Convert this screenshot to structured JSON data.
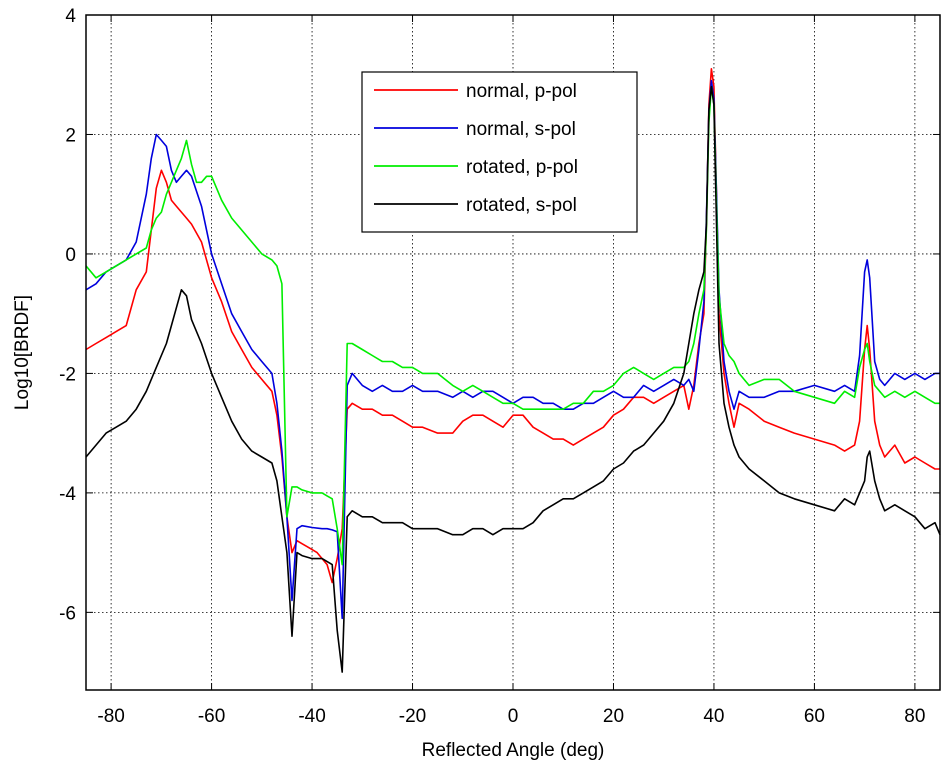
{
  "chart_data": {
    "type": "line",
    "title": "",
    "xlabel": "Reflected Angle (deg)",
    "ylabel": "Log10[BRDF]",
    "xlim": [
      -85,
      85
    ],
    "ylim": [
      -7.3,
      4
    ],
    "xticks": [
      -80,
      -60,
      -40,
      -20,
      0,
      20,
      40,
      60,
      80
    ],
    "yticks": [
      -6,
      -4,
      -2,
      0,
      2,
      4
    ],
    "grid": true,
    "legend_position": "top-center",
    "series": [
      {
        "name": "normal, p-pol",
        "color": "#ff0000",
        "x": [
          -85,
          -83,
          -81,
          -79,
          -77,
          -75,
          -73,
          -72,
          -71,
          -70,
          -69,
          -68,
          -67,
          -66,
          -65,
          -64,
          -62,
          -60,
          -58,
          -56,
          -54,
          -52,
          -50,
          -48,
          -47,
          -46,
          -45,
          -44,
          -43,
          -42,
          -41,
          -40,
          -39,
          -38,
          -37,
          -36,
          -35,
          -34,
          -33,
          -32,
          -30,
          -28,
          -26,
          -24,
          -22,
          -20,
          -18,
          -15,
          -12,
          -10,
          -8,
          -6,
          -4,
          -2,
          0,
          2,
          4,
          6,
          8,
          10,
          12,
          14,
          16,
          18,
          20,
          22,
          24,
          26,
          28,
          30,
          32,
          34,
          35,
          36,
          37,
          38,
          38.5,
          39,
          39.5,
          40,
          40.5,
          41,
          42,
          43,
          44,
          45,
          47,
          50,
          53,
          56,
          60,
          64,
          66,
          68,
          69,
          70,
          70.5,
          71,
          72,
          73,
          74,
          76,
          78,
          80,
          82,
          84,
          85
        ],
        "values": [
          -1.6,
          -1.5,
          -1.4,
          -1.3,
          -1.2,
          -0.6,
          -0.3,
          0.4,
          1.1,
          1.4,
          1.2,
          0.9,
          0.8,
          0.7,
          0.6,
          0.5,
          0.2,
          -0.4,
          -0.8,
          -1.3,
          -1.6,
          -1.9,
          -2.1,
          -2.3,
          -2.7,
          -3.4,
          -4.4,
          -5.0,
          -4.8,
          -4.85,
          -4.9,
          -4.95,
          -5.0,
          -5.1,
          -5.2,
          -5.5,
          -5.1,
          -4.6,
          -2.6,
          -2.5,
          -2.6,
          -2.6,
          -2.7,
          -2.7,
          -2.8,
          -2.9,
          -2.9,
          -3.0,
          -3.0,
          -2.8,
          -2.7,
          -2.7,
          -2.8,
          -2.9,
          -2.7,
          -2.7,
          -2.9,
          -3.0,
          -3.1,
          -3.1,
          -3.2,
          -3.1,
          -3.0,
          -2.9,
          -2.7,
          -2.6,
          -2.4,
          -2.4,
          -2.5,
          -2.4,
          -2.3,
          -2.2,
          -2.6,
          -2.2,
          -1.5,
          -1.0,
          0.5,
          2.5,
          3.1,
          2.8,
          1.0,
          -1.0,
          -2.0,
          -2.5,
          -2.9,
          -2.5,
          -2.6,
          -2.8,
          -2.9,
          -3.0,
          -3.1,
          -3.2,
          -3.3,
          -3.2,
          -2.8,
          -1.6,
          -1.2,
          -1.6,
          -2.8,
          -3.2,
          -3.4,
          -3.2,
          -3.5,
          -3.4,
          -3.5,
          -3.6,
          -3.6
        ]
      },
      {
        "name": "normal, s-pol",
        "color": "#0000dd",
        "x": [
          -85,
          -83,
          -81,
          -79,
          -77,
          -75,
          -73,
          -72,
          -71,
          -70,
          -69,
          -68,
          -67,
          -66,
          -65,
          -64,
          -62,
          -60,
          -58,
          -56,
          -54,
          -52,
          -50,
          -48,
          -47,
          -46,
          -45,
          -44,
          -43,
          -42,
          -40,
          -38,
          -37,
          -36,
          -35,
          -34,
          -33,
          -32,
          -30,
          -28,
          -26,
          -24,
          -22,
          -20,
          -18,
          -15,
          -12,
          -10,
          -8,
          -6,
          -4,
          -2,
          0,
          2,
          4,
          6,
          8,
          10,
          12,
          14,
          16,
          18,
          20,
          22,
          24,
          26,
          28,
          30,
          32,
          34,
          35,
          36,
          37,
          38,
          38.5,
          39,
          39.5,
          40,
          40.5,
          41,
          42,
          43,
          44,
          45,
          47,
          50,
          53,
          56,
          60,
          64,
          66,
          68,
          69,
          70,
          70.5,
          71,
          72,
          73,
          74,
          76,
          78,
          80,
          82,
          84,
          85
        ],
        "values": [
          -0.6,
          -0.5,
          -0.3,
          -0.2,
          -0.1,
          0.2,
          1.0,
          1.6,
          2.0,
          1.9,
          1.8,
          1.4,
          1.2,
          1.3,
          1.4,
          1.3,
          0.8,
          0.0,
          -0.5,
          -1.0,
          -1.3,
          -1.6,
          -1.8,
          -2.0,
          -2.5,
          -3.3,
          -4.4,
          -5.8,
          -4.6,
          -4.55,
          -4.58,
          -4.6,
          -4.6,
          -4.62,
          -4.65,
          -6.1,
          -2.2,
          -2.0,
          -2.2,
          -2.3,
          -2.2,
          -2.3,
          -2.3,
          -2.2,
          -2.3,
          -2.3,
          -2.4,
          -2.3,
          -2.4,
          -2.3,
          -2.3,
          -2.4,
          -2.5,
          -2.4,
          -2.4,
          -2.5,
          -2.5,
          -2.6,
          -2.6,
          -2.5,
          -2.5,
          -2.4,
          -2.3,
          -2.4,
          -2.4,
          -2.2,
          -2.3,
          -2.2,
          -2.1,
          -2.2,
          -2.1,
          -2.3,
          -1.6,
          -0.8,
          0.6,
          2.4,
          2.9,
          2.6,
          1.0,
          -0.6,
          -1.8,
          -2.3,
          -2.6,
          -2.3,
          -2.4,
          -2.4,
          -2.3,
          -2.3,
          -2.2,
          -2.3,
          -2.2,
          -2.3,
          -1.7,
          -0.3,
          -0.1,
          -0.4,
          -1.8,
          -2.1,
          -2.2,
          -2.0,
          -2.1,
          -2.0,
          -2.1,
          -2.0,
          -2.0
        ]
      },
      {
        "name": "rotated, p-pol",
        "color": "#00ee00",
        "x": [
          -85,
          -83,
          -81,
          -79,
          -77,
          -75,
          -73,
          -72,
          -71,
          -70,
          -69,
          -68,
          -67,
          -66,
          -65,
          -64,
          -63,
          -62,
          -61,
          -60,
          -58,
          -56,
          -54,
          -52,
          -50,
          -48,
          -47,
          -46,
          -45,
          -44,
          -43,
          -42,
          -40,
          -38,
          -37,
          -36,
          -35,
          -34,
          -33,
          -32,
          -30,
          -28,
          -26,
          -24,
          -22,
          -20,
          -18,
          -15,
          -12,
          -10,
          -8,
          -6,
          -4,
          -2,
          0,
          2,
          4,
          6,
          8,
          10,
          12,
          14,
          16,
          18,
          20,
          22,
          24,
          26,
          28,
          30,
          32,
          34,
          35,
          36,
          37,
          38,
          38.5,
          39,
          39.5,
          40,
          40.5,
          41,
          42,
          43,
          44,
          45,
          47,
          50,
          53,
          56,
          60,
          64,
          66,
          68,
          69,
          70,
          70.5,
          71,
          72,
          73,
          74,
          76,
          78,
          80,
          82,
          84,
          85
        ],
        "values": [
          -0.2,
          -0.4,
          -0.3,
          -0.2,
          -0.1,
          0.0,
          0.1,
          0.4,
          0.6,
          0.7,
          1.0,
          1.2,
          1.4,
          1.6,
          1.9,
          1.5,
          1.2,
          1.2,
          1.3,
          1.3,
          0.9,
          0.6,
          0.4,
          0.2,
          0.0,
          -0.1,
          -0.2,
          -0.5,
          -4.4,
          -3.9,
          -3.9,
          -3.95,
          -4.0,
          -4.0,
          -4.05,
          -4.1,
          -4.6,
          -5.2,
          -1.5,
          -1.5,
          -1.6,
          -1.7,
          -1.8,
          -1.8,
          -1.9,
          -1.9,
          -2.0,
          -2.0,
          -2.2,
          -2.3,
          -2.2,
          -2.3,
          -2.4,
          -2.5,
          -2.5,
          -2.6,
          -2.6,
          -2.6,
          -2.6,
          -2.6,
          -2.5,
          -2.5,
          -2.3,
          -2.3,
          -2.2,
          -2.0,
          -1.9,
          -2.0,
          -2.1,
          -2.0,
          -1.9,
          -1.9,
          -1.8,
          -1.5,
          -1.0,
          -0.6,
          0.4,
          2.2,
          2.8,
          2.5,
          0.8,
          -0.7,
          -1.5,
          -1.7,
          -1.8,
          -2.0,
          -2.2,
          -2.1,
          -2.1,
          -2.3,
          -2.4,
          -2.5,
          -2.3,
          -2.4,
          -1.9,
          -1.6,
          -1.5,
          -1.8,
          -2.2,
          -2.3,
          -2.4,
          -2.3,
          -2.4,
          -2.3,
          -2.4,
          -2.5,
          -2.5
        ]
      },
      {
        "name": "rotated, s-pol",
        "color": "#000000",
        "x": [
          -85,
          -83,
          -81,
          -79,
          -77,
          -75,
          -73,
          -71,
          -69,
          -68,
          -67,
          -66,
          -65,
          -64,
          -62,
          -60,
          -58,
          -56,
          -54,
          -52,
          -50,
          -48,
          -47,
          -46,
          -45,
          -44,
          -43,
          -42,
          -40,
          -38,
          -37,
          -36,
          -35,
          -34,
          -33,
          -32,
          -30,
          -28,
          -26,
          -24,
          -22,
          -20,
          -18,
          -15,
          -12,
          -10,
          -8,
          -6,
          -4,
          -2,
          0,
          2,
          4,
          6,
          8,
          10,
          12,
          14,
          16,
          18,
          20,
          22,
          24,
          26,
          28,
          30,
          32,
          34,
          35,
          36,
          37,
          38,
          38.5,
          39,
          39.5,
          40,
          40.5,
          41,
          42,
          43,
          44,
          45,
          47,
          50,
          53,
          56,
          60,
          64,
          66,
          68,
          69,
          70,
          70.5,
          71,
          72,
          73,
          74,
          76,
          78,
          80,
          82,
          84,
          85
        ],
        "values": [
          -3.4,
          -3.2,
          -3.0,
          -2.9,
          -2.8,
          -2.6,
          -2.3,
          -1.9,
          -1.5,
          -1.2,
          -0.9,
          -0.6,
          -0.7,
          -1.1,
          -1.5,
          -2.0,
          -2.4,
          -2.8,
          -3.1,
          -3.3,
          -3.4,
          -3.5,
          -3.8,
          -4.4,
          -5.0,
          -6.4,
          -5.0,
          -5.05,
          -5.1,
          -5.1,
          -5.15,
          -5.2,
          -6.3,
          -7.0,
          -4.4,
          -4.3,
          -4.4,
          -4.4,
          -4.5,
          -4.5,
          -4.5,
          -4.6,
          -4.6,
          -4.6,
          -4.7,
          -4.7,
          -4.6,
          -4.6,
          -4.7,
          -4.6,
          -4.6,
          -4.6,
          -4.5,
          -4.3,
          -4.2,
          -4.1,
          -4.1,
          -4.0,
          -3.9,
          -3.8,
          -3.6,
          -3.5,
          -3.3,
          -3.2,
          -3.0,
          -2.8,
          -2.5,
          -2.0,
          -1.5,
          -1.0,
          -0.6,
          -0.3,
          0.5,
          2.4,
          2.8,
          2.5,
          0.5,
          -1.5,
          -2.5,
          -2.9,
          -3.2,
          -3.4,
          -3.6,
          -3.8,
          -4.0,
          -4.1,
          -4.2,
          -4.3,
          -4.1,
          -4.2,
          -4.0,
          -3.8,
          -3.4,
          -3.3,
          -3.8,
          -4.1,
          -4.3,
          -4.2,
          -4.3,
          -4.4,
          -4.6,
          -4.5,
          -4.7
        ]
      }
    ]
  }
}
